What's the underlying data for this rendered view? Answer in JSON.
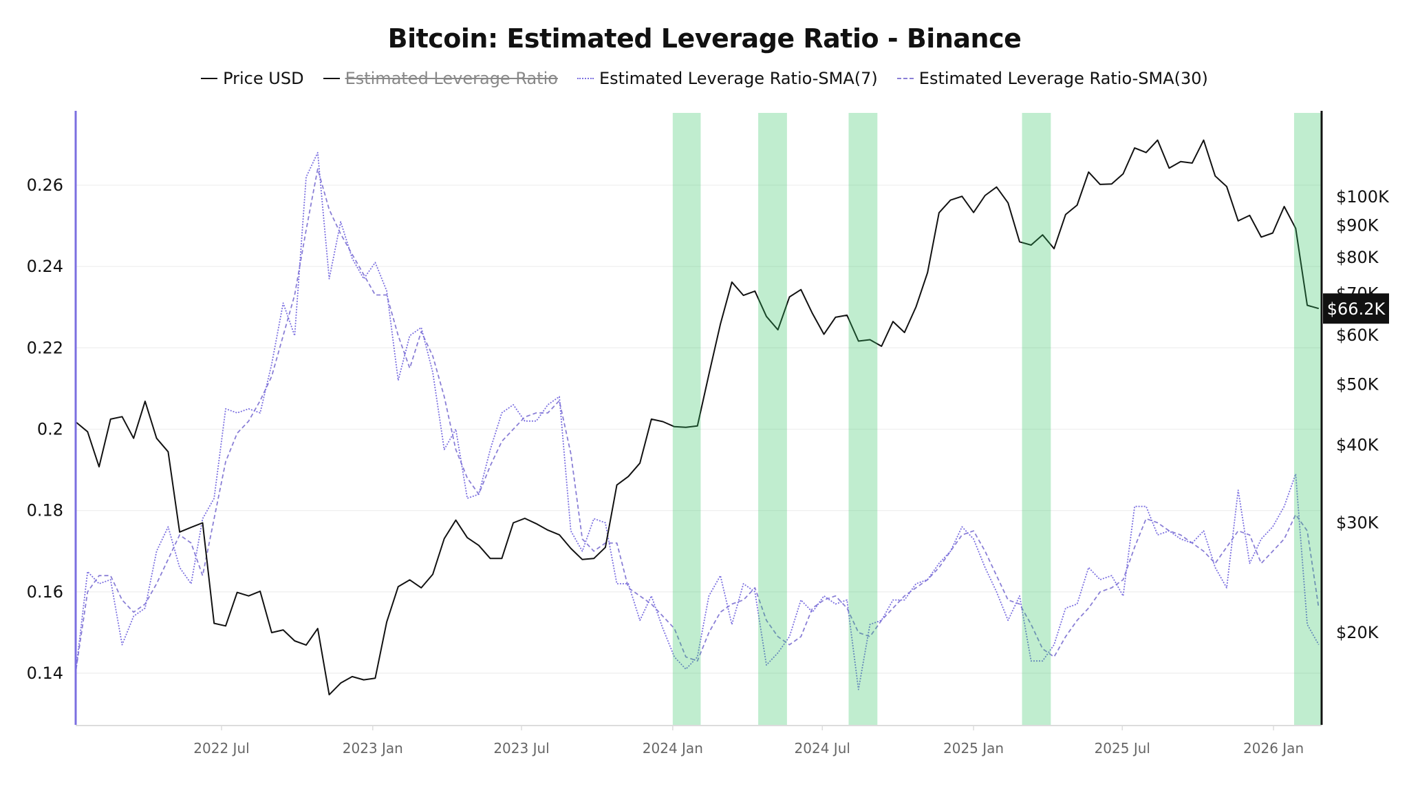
{
  "chart_data": {
    "type": "line",
    "title": "Bitcoin: Estimated Leverage Ratio - Binance",
    "legend": [
      {
        "name": "Price USD",
        "style": "solid",
        "color": "#111111",
        "visible": true
      },
      {
        "name": "Estimated Leverage Ratio",
        "style": "solid",
        "color": "#111111",
        "visible": false
      },
      {
        "name": "Estimated Leverage Ratio-SMA(7)",
        "style": "dotted",
        "color": "#7b6fe0",
        "visible": true
      },
      {
        "name": "Estimated Leverage Ratio-SMA(30)",
        "style": "dashed",
        "color": "#8a7fd6",
        "visible": true
      }
    ],
    "legend_placement": "top-center",
    "x_start": "2022-01-05",
    "x_step_days": 14,
    "x_range": [
      "2022-01-05",
      "2026-03-01"
    ],
    "x_ticks": [
      "2022 Jul",
      "2023 Jan",
      "2023 Jul",
      "2024 Jan",
      "2024 Jul",
      "2025 Jan",
      "2025 Jul",
      "2026 Jan"
    ],
    "x_tick_dates": [
      "2022-07-01",
      "2023-01-01",
      "2023-07-01",
      "2024-01-01",
      "2024-07-01",
      "2025-01-01",
      "2025-07-01",
      "2026-01-01"
    ],
    "y_left": {
      "label": "",
      "ticks": [
        "0.14",
        "0.16",
        "0.18",
        "0.2",
        "0.22",
        "0.24",
        "0.26"
      ],
      "tick_values": [
        0.14,
        0.16,
        0.18,
        0.2,
        0.22,
        0.24,
        0.26
      ],
      "range": [
        0.1273,
        0.2778
      ],
      "grid": true
    },
    "y_right": {
      "label": "",
      "scale": "log",
      "ticks": [
        "$20K",
        "$30K",
        "$40K",
        "$50K",
        "$60K",
        "$70K",
        "$80K",
        "$90K",
        "$100K"
      ],
      "tick_values": [
        20000,
        30000,
        40000,
        50000,
        60000,
        70000,
        80000,
        90000,
        100000
      ]
    },
    "last_price_label": "$66.2K",
    "last_price_value": 66200,
    "highlight_color": "#2ec460",
    "highlight_ranges": [
      [
        "2024-01-01",
        "2024-02-04"
      ],
      [
        "2024-04-14",
        "2024-05-19"
      ],
      [
        "2024-08-02",
        "2024-09-06"
      ],
      [
        "2025-03-01",
        "2025-04-05"
      ],
      [
        "2026-01-26",
        "2026-03-01"
      ]
    ],
    "series": [
      {
        "name": "Price USD",
        "axis": "right",
        "values": [
          43500,
          42000,
          36900,
          44000,
          44400,
          41000,
          47000,
          41000,
          39000,
          29000,
          29500,
          30000,
          20700,
          20500,
          23200,
          22900,
          23300,
          20000,
          20200,
          19400,
          19100,
          20300,
          15900,
          16600,
          17000,
          16800,
          16900,
          20800,
          23700,
          24300,
          23600,
          24800,
          28300,
          30300,
          28400,
          27600,
          26300,
          26300,
          30000,
          30500,
          29900,
          29200,
          28700,
          27300,
          26200,
          26300,
          27400,
          34500,
          35600,
          37400,
          44000,
          43600,
          42800,
          42700,
          42900,
          51900,
          62500,
          73000,
          69500,
          70600,
          64300,
          61200,
          69100,
          71000,
          65000,
          60200,
          64100,
          64600,
          58700,
          59000,
          57600,
          63100,
          60600,
          66600,
          75600,
          94300,
          98800,
          100200,
          94400,
          100500,
          103700,
          97800,
          84700,
          83700,
          86900,
          82600,
          93700,
          97000,
          109600,
          104700,
          104900,
          108900,
          119800,
          117800,
          123300,
          111200,
          113900,
          113300,
          123300,
          108000,
          103900,
          91500,
          93400,
          86200,
          87500,
          96500,
          89000,
          67000,
          66200
        ]
      },
      {
        "name": "Estimated Leverage Ratio-SMA(7)",
        "axis": "left",
        "values": [
          0.141,
          0.165,
          0.162,
          0.163,
          0.147,
          0.154,
          0.156,
          0.17,
          0.176,
          0.166,
          0.162,
          0.178,
          0.183,
          0.205,
          0.204,
          0.205,
          0.204,
          0.216,
          0.231,
          0.223,
          0.262,
          0.268,
          0.237,
          0.251,
          0.242,
          0.237,
          0.241,
          0.234,
          0.212,
          0.223,
          0.225,
          0.214,
          0.195,
          0.2,
          0.183,
          0.184,
          0.195,
          0.204,
          0.206,
          0.202,
          0.202,
          0.206,
          0.208,
          0.175,
          0.17,
          0.178,
          0.177,
          0.162,
          0.162,
          0.153,
          0.159,
          0.151,
          0.144,
          0.141,
          0.144,
          0.159,
          0.164,
          0.152,
          0.162,
          0.16,
          0.142,
          0.145,
          0.149,
          0.158,
          0.155,
          0.159,
          0.157,
          0.158,
          0.136,
          0.152,
          0.153,
          0.158,
          0.158,
          0.162,
          0.163,
          0.167,
          0.17,
          0.176,
          0.173,
          0.166,
          0.16,
          0.153,
          0.159,
          0.143,
          0.143,
          0.147,
          0.156,
          0.157,
          0.166,
          0.163,
          0.164,
          0.159,
          0.181,
          0.181,
          0.174,
          0.175,
          0.173,
          0.172,
          0.175,
          0.166,
          0.161,
          0.185,
          0.167,
          0.173,
          0.176,
          0.181,
          0.189,
          0.152,
          0.147
        ]
      },
      {
        "name": "Estimated Leverage Ratio-SMA(30)",
        "axis": "left",
        "values": [
          0.141,
          0.16,
          0.164,
          0.164,
          0.158,
          0.155,
          0.157,
          0.162,
          0.168,
          0.174,
          0.172,
          0.164,
          0.178,
          0.192,
          0.199,
          0.202,
          0.207,
          0.213,
          0.223,
          0.233,
          0.249,
          0.264,
          0.254,
          0.248,
          0.243,
          0.238,
          0.233,
          0.233,
          0.223,
          0.215,
          0.224,
          0.218,
          0.208,
          0.195,
          0.188,
          0.184,
          0.191,
          0.197,
          0.2,
          0.203,
          0.204,
          0.204,
          0.207,
          0.194,
          0.173,
          0.17,
          0.172,
          0.172,
          0.161,
          0.159,
          0.157,
          0.154,
          0.151,
          0.144,
          0.143,
          0.15,
          0.155,
          0.157,
          0.158,
          0.161,
          0.153,
          0.149,
          0.147,
          0.149,
          0.156,
          0.158,
          0.159,
          0.156,
          0.15,
          0.149,
          0.153,
          0.156,
          0.159,
          0.161,
          0.163,
          0.166,
          0.17,
          0.174,
          0.175,
          0.17,
          0.164,
          0.158,
          0.157,
          0.152,
          0.146,
          0.144,
          0.149,
          0.153,
          0.156,
          0.16,
          0.161,
          0.163,
          0.171,
          0.178,
          0.177,
          0.175,
          0.174,
          0.172,
          0.17,
          0.167,
          0.171,
          0.175,
          0.174,
          0.167,
          0.17,
          0.173,
          0.179,
          0.175,
          0.156
        ]
      }
    ]
  }
}
